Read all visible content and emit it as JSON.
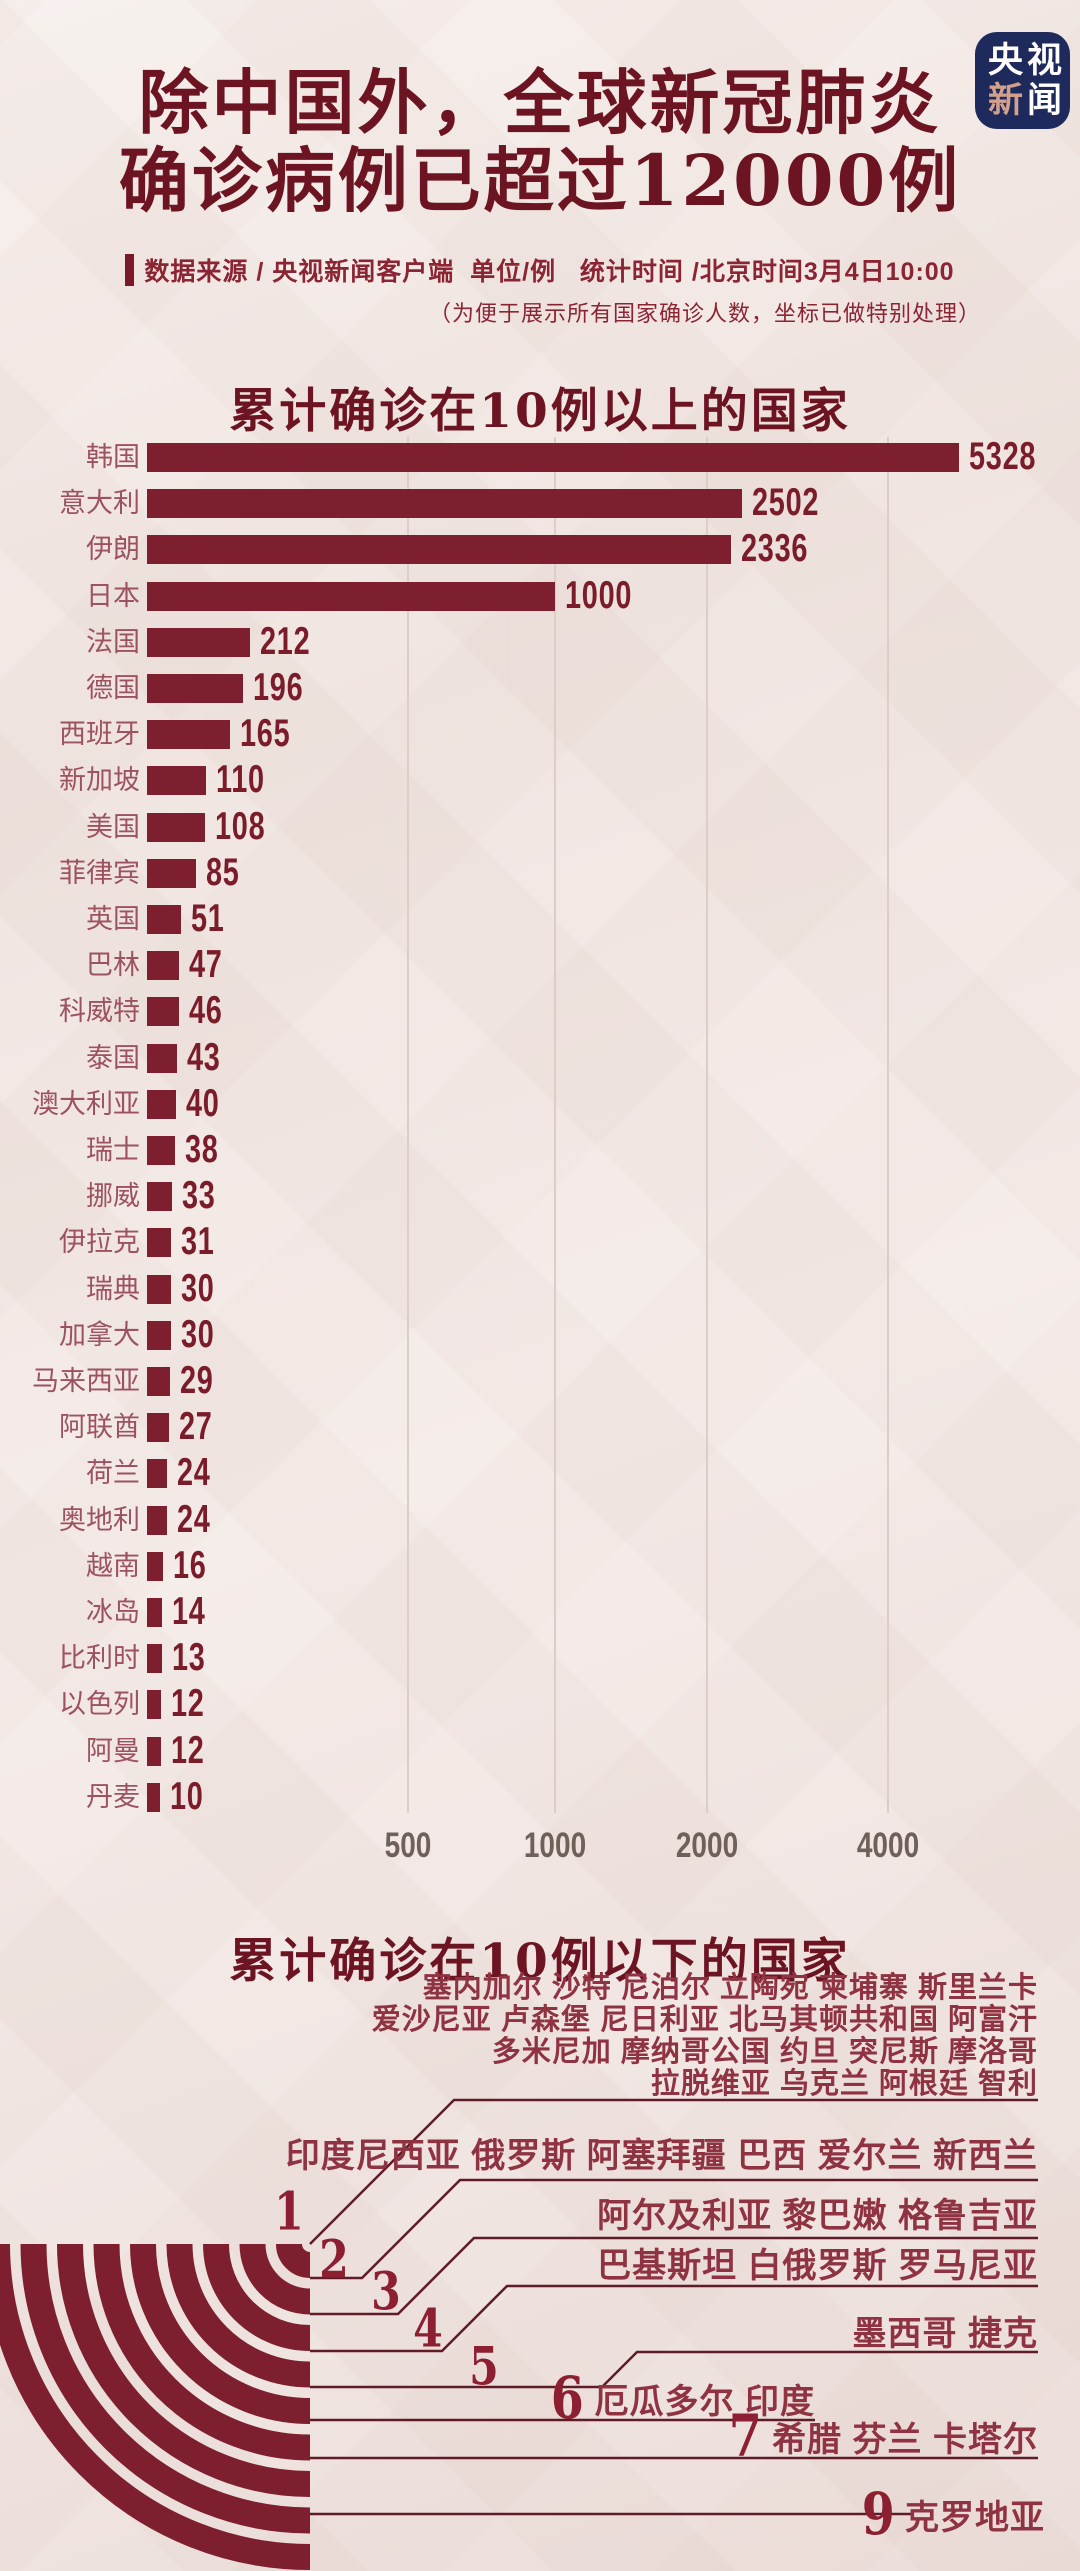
{
  "header": {
    "title_line1": "除中国外，全球新冠肺炎",
    "title_line2": "确诊病例已超过12000例",
    "source_line": "数据来源 / 央视新闻客户端  单位/例   统计时间 /北京时间3月4日10:00",
    "note_line": "（为便于展示所有国家确诊人数，坐标已做特别处理）",
    "logo": {
      "line1": "央视",
      "line2_accent": "新",
      "line2_rest": "闻"
    }
  },
  "chart_data": {
    "type": "bar",
    "orientation": "horizontal",
    "title": "累计确诊在10例以上的国家",
    "unit": "例",
    "x_ticks": [
      500,
      1000,
      2000,
      4000
    ],
    "scale_note": "非线性坐标（坐标已做特别处理）",
    "grid": true,
    "categories": [
      "韩国",
      "意大利",
      "伊朗",
      "日本",
      "法国",
      "德国",
      "西班牙",
      "新加坡",
      "美国",
      "菲律宾",
      "英国",
      "巴林",
      "科威特",
      "泰国",
      "澳大利亚",
      "瑞士",
      "挪威",
      "伊拉克",
      "瑞典",
      "加拿大",
      "马来西亚",
      "阿联酋",
      "荷兰",
      "奥地利",
      "越南",
      "冰岛",
      "比利时",
      "以色列",
      "阿曼",
      "丹麦"
    ],
    "values": [
      5328,
      2502,
      2336,
      1000,
      212,
      196,
      165,
      110,
      108,
      85,
      51,
      47,
      46,
      43,
      40,
      38,
      33,
      31,
      30,
      30,
      29,
      27,
      24,
      24,
      16,
      14,
      13,
      12,
      12,
      10
    ],
    "axis_calibration": [
      [
        0,
        0
      ],
      [
        10,
        13
      ],
      [
        50,
        34
      ],
      [
        100,
        55
      ],
      [
        212,
        103
      ],
      [
        500,
        261
      ],
      [
        1000,
        408
      ],
      [
        2000,
        560
      ],
      [
        2500,
        595
      ],
      [
        4000,
        741
      ],
      [
        5400,
        816
      ]
    ]
  },
  "section2": {
    "title": "累计确诊在10例以下的国家",
    "rows": [
      {
        "count": "1",
        "lines": [
          "塞内加尔 沙特 尼泊尔 立陶宛 柬埔寨 斯里兰卡",
          "爱沙尼亚 卢森堡 尼日利亚 北马其顿共和国 阿富汗",
          "多米尼加 摩纳哥公国 约旦 突尼斯 摩洛哥",
          "拉脱维亚 乌克兰 阿根廷 智利"
        ]
      },
      {
        "count": "2",
        "countries": "印度尼西亚 俄罗斯 阿塞拜疆 巴西 爱尔兰 新西兰"
      },
      {
        "count": "3",
        "countries": "阿尔及利亚 黎巴嫩 格鲁吉亚"
      },
      {
        "count": "4",
        "countries": "巴基斯坦 白俄罗斯 罗马尼亚"
      },
      {
        "count": "5",
        "countries": "墨西哥 捷克"
      },
      {
        "count": "6",
        "countries": "厄瓜多尔 印度"
      },
      {
        "count": "7",
        "countries": "希腊 芬兰 卡塔尔"
      },
      {
        "count": "9",
        "countries": "克罗地亚"
      }
    ]
  },
  "colors": {
    "bar": "#7d1f2e",
    "title": "#6d1422",
    "label": "#9d5260",
    "value": "#7a1c2a",
    "bottom_text": "#8f3343",
    "connector": "#5f1b28",
    "gridline": "#ddcdc7",
    "tick": "#6f6059",
    "logo_bg": "#1e2a5c",
    "logo_accent": "#d2a08d",
    "background": "#f3ece9"
  }
}
